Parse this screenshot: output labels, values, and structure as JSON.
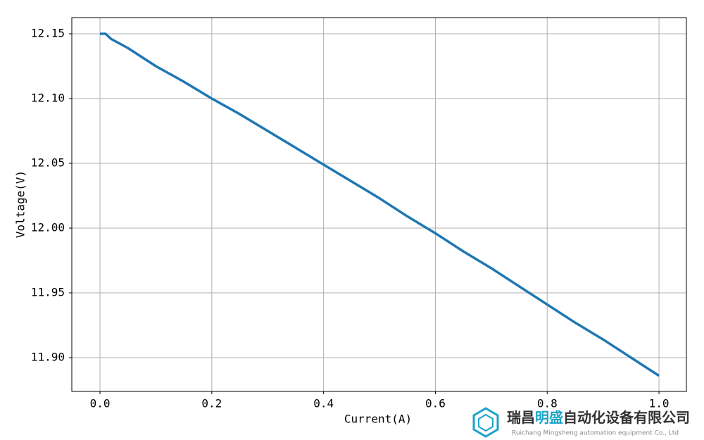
{
  "chart_data": {
    "type": "line",
    "x_label": "Current(A)",
    "y_label": "Voltage(V)",
    "x": [
      0,
      0.01,
      0.02,
      0.05,
      0.1,
      0.15,
      0.2,
      0.25,
      0.3,
      0.35,
      0.4,
      0.45,
      0.5,
      0.55,
      0.6,
      0.65,
      0.7,
      0.75,
      0.8,
      0.85,
      0.9,
      0.95,
      1.0
    ],
    "series": [
      {
        "color": "#1f77b4",
        "values": [
          12.15,
          12.15,
          12.146,
          12.139,
          12.125,
          12.113,
          12.1,
          12.088,
          12.075,
          12.062,
          12.049,
          12.036,
          12.023,
          12.009,
          11.996,
          11.982,
          11.969,
          11.955,
          11.941,
          11.927,
          11.914,
          11.9,
          11.886
        ]
      }
    ],
    "xlim": [
      -0.0504,
      1.049
    ],
    "ylim": [
      11.8739,
      12.1625
    ],
    "xticks": [
      {
        "value": 0,
        "label": "0.0"
      },
      {
        "value": 0.2,
        "label": "0.2"
      },
      {
        "value": 0.4,
        "label": "0.4"
      },
      {
        "value": 0.6,
        "label": "0.6"
      },
      {
        "value": 0.8,
        "label": "0.8"
      },
      {
        "value": 1.0,
        "label": "1.0"
      }
    ],
    "yticks": [
      {
        "value": 11.9,
        "label": "11.90"
      },
      11.95,
      {
        "value": 12.0,
        "label": "12.00"
      },
      12.05,
      {
        "value": 12.1,
        "label": "12.10"
      },
      12.15
    ],
    "grid": true
  },
  "watermark": {
    "name_parts": [
      "瑞昌",
      "明盛",
      "自动化设备有限公司"
    ],
    "subtitle": "Ruichang Mingsheng automation equipment Co., Ltd"
  }
}
